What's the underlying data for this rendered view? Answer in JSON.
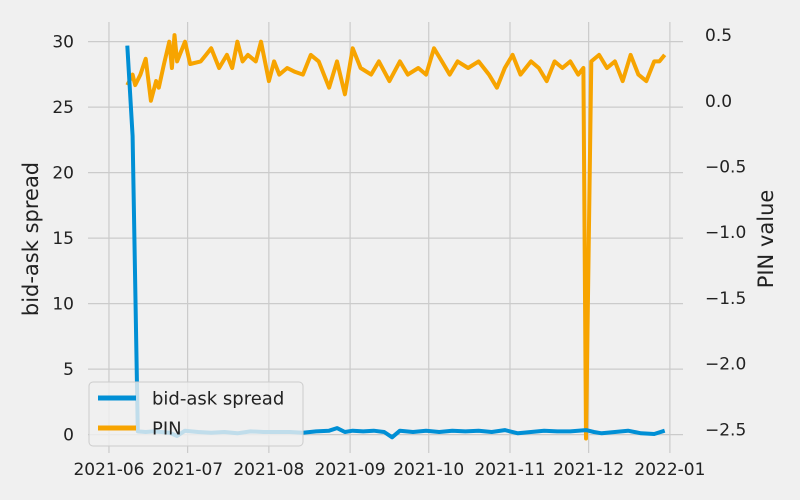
{
  "chart_data": {
    "type": "line",
    "title": "",
    "xlabel": "",
    "ylabel": "bid-ask spread",
    "y2label": "PIN value",
    "x_ticks": [
      "2021-06",
      "2021-07",
      "2021-08",
      "2021-09",
      "2021-10",
      "2021-11",
      "2021-12",
      "2022-01"
    ],
    "x_range": [
      "2021-05-24",
      "2022-01-06"
    ],
    "ylim": [
      -1.4,
      31.5
    ],
    "y_ticks": [
      0,
      5,
      10,
      15,
      20,
      25,
      30
    ],
    "y2lim": [
      -2.68,
      0.6
    ],
    "y2_ticks": [
      -2.5,
      -2.0,
      -1.5,
      -1.0,
      -0.5,
      0.0,
      0.5
    ],
    "y2_tick_labels": [
      "−2.5",
      "−2.0",
      "−1.5",
      "−1.0",
      "−0.5",
      "0.0",
      "0.5"
    ],
    "grid": true,
    "legend_position": "lower-left",
    "series": [
      {
        "name": "bid-ask spread",
        "axis": "left",
        "color": "#008fd5",
        "x": [
          "2021-06-08",
          "2021-06-10",
          "2021-06-12",
          "2021-06-15",
          "2021-06-18",
          "2021-06-21",
          "2021-06-24",
          "2021-06-27",
          "2021-06-30",
          "2021-07-05",
          "2021-07-10",
          "2021-07-15",
          "2021-07-20",
          "2021-07-25",
          "2021-07-30",
          "2021-08-04",
          "2021-08-09",
          "2021-08-14",
          "2021-08-19",
          "2021-08-24",
          "2021-08-27",
          "2021-08-30",
          "2021-09-02",
          "2021-09-06",
          "2021-09-10",
          "2021-09-14",
          "2021-09-17",
          "2021-09-20",
          "2021-09-25",
          "2021-09-30",
          "2021-10-05",
          "2021-10-10",
          "2021-10-15",
          "2021-10-20",
          "2021-10-25",
          "2021-10-30",
          "2021-11-04",
          "2021-11-09",
          "2021-11-14",
          "2021-11-19",
          "2021-11-24",
          "2021-11-27",
          "2021-11-30",
          "2021-12-03",
          "2021-12-06",
          "2021-12-11",
          "2021-12-16",
          "2021-12-21",
          "2021-12-26",
          "2021-12-30"
        ],
        "values": [
          29.7,
          22.8,
          0.25,
          0.2,
          0.25,
          0.2,
          0.15,
          -0.1,
          0.3,
          0.2,
          0.15,
          0.2,
          0.1,
          0.25,
          0.2,
          0.2,
          0.2,
          0.15,
          0.25,
          0.3,
          0.5,
          0.2,
          0.3,
          0.25,
          0.3,
          0.2,
          -0.2,
          0.3,
          0.2,
          0.3,
          0.2,
          0.3,
          0.25,
          0.3,
          0.2,
          0.35,
          0.1,
          0.2,
          0.3,
          0.25,
          0.25,
          0.3,
          0.35,
          0.2,
          0.1,
          0.2,
          0.3,
          0.1,
          0.05,
          0.3
        ]
      },
      {
        "name": "PIN",
        "axis": "right",
        "color": "#fc4f30",
        "display_color": "#f7a400",
        "x": [
          "2021-06-08",
          "2021-06-10",
          "2021-06-11",
          "2021-06-13",
          "2021-06-15",
          "2021-06-17",
          "2021-06-19",
          "2021-06-20",
          "2021-06-22",
          "2021-06-24",
          "2021-06-25",
          "2021-06-26",
          "2021-06-27",
          "2021-06-28",
          "2021-06-30",
          "2021-07-02",
          "2021-07-06",
          "2021-07-08",
          "2021-07-10",
          "2021-07-13",
          "2021-07-16",
          "2021-07-18",
          "2021-07-20",
          "2021-07-22",
          "2021-07-24",
          "2021-07-27",
          "2021-07-29",
          "2021-08-01",
          "2021-08-03",
          "2021-08-05",
          "2021-08-08",
          "2021-08-11",
          "2021-08-14",
          "2021-08-17",
          "2021-08-20",
          "2021-08-24",
          "2021-08-27",
          "2021-08-30",
          "2021-09-02",
          "2021-09-05",
          "2021-09-09",
          "2021-09-12",
          "2021-09-16",
          "2021-09-20",
          "2021-09-23",
          "2021-09-27",
          "2021-09-30",
          "2021-10-03",
          "2021-10-06",
          "2021-10-09",
          "2021-10-12",
          "2021-10-16",
          "2021-10-20",
          "2021-10-24",
          "2021-10-27",
          "2021-10-30",
          "2021-11-02",
          "2021-11-05",
          "2021-11-09",
          "2021-11-12",
          "2021-11-15",
          "2021-11-18",
          "2021-11-21",
          "2021-11-24",
          "2021-11-27",
          "2021-11-29",
          "2021-11-30",
          "2021-12-02",
          "2021-12-05",
          "2021-12-08",
          "2021-12-11",
          "2021-12-14",
          "2021-12-17",
          "2021-12-20",
          "2021-12-23",
          "2021-12-26",
          "2021-12-28",
          "2021-12-30"
        ],
        "values": [
          0.12,
          0.2,
          0.12,
          0.2,
          0.32,
          0.0,
          0.15,
          0.1,
          0.28,
          0.45,
          0.25,
          0.5,
          0.3,
          0.35,
          0.45,
          0.28,
          0.3,
          0.35,
          0.4,
          0.25,
          0.35,
          0.25,
          0.45,
          0.3,
          0.35,
          0.3,
          0.45,
          0.15,
          0.3,
          0.2,
          0.25,
          0.22,
          0.2,
          0.35,
          0.3,
          0.1,
          0.3,
          0.05,
          0.4,
          0.25,
          0.2,
          0.3,
          0.15,
          0.3,
          0.2,
          0.25,
          0.2,
          0.4,
          0.3,
          0.2,
          0.3,
          0.25,
          0.3,
          0.2,
          0.1,
          0.25,
          0.35,
          0.2,
          0.3,
          0.25,
          0.15,
          0.3,
          0.25,
          0.3,
          0.2,
          0.25,
          -2.57,
          0.3,
          0.35,
          0.25,
          0.3,
          0.15,
          0.35,
          0.2,
          0.15,
          0.3,
          0.3,
          0.35
        ]
      }
    ]
  }
}
